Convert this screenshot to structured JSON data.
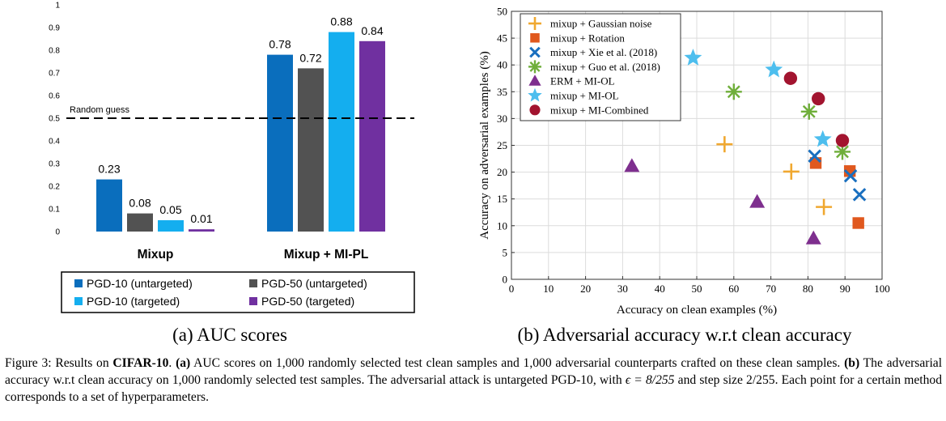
{
  "panel_a": {
    "subtitle": "(a) AUC scores",
    "random_guess_label": "Random guess",
    "legend_font_hint": "sans"
  },
  "panel_b": {
    "subtitle": "(b) Adversarial accuracy w.r.t clean accuracy"
  },
  "caption": {
    "lead": "Figure 3: Results on ",
    "dataset": "CIFAR-10",
    "after_dataset": ". ",
    "a_tag": "(a)",
    "a_text": " AUC scores on 1,000 randomly selected test clean samples and 1,000 adversarial counterparts crafted on these clean samples. ",
    "b_tag": "(b)",
    "b_text": " The adversarial accuracy w.r.t clean accuracy on 1,000 randomly selected test samples. The adversarial attack is untargeted PGD-10, with ",
    "eps": "ϵ = 8/255",
    "b_text2": " and step size ",
    "step": "2/255",
    "b_text3": ". Each point for a certain method corresponds to a set of hyperparameters."
  },
  "chart_data": [
    {
      "type": "bar",
      "title": "",
      "xlabel": "",
      "ylabel": "",
      "categories": [
        "Mixup",
        "Mixup + MI-PL"
      ],
      "ylim": [
        0,
        1
      ],
      "yticks": [
        0,
        0.1,
        0.2,
        0.3,
        0.4,
        0.5,
        0.6,
        0.7,
        0.8,
        0.9,
        1
      ],
      "ytick_labels": [
        "0",
        "0.1",
        "0.2",
        "0.3",
        "0.4",
        "0.5",
        "0.6",
        "0.7",
        "0.8",
        "0.9",
        "1"
      ],
      "reference_line": {
        "y": 0.5,
        "label": "Random guess",
        "style": "dashed"
      },
      "grid": false,
      "legend_position": "bottom",
      "series": [
        {
          "name": "PGD-10 (untargeted)",
          "color": "#0a6ebd",
          "values": [
            0.23,
            0.78
          ],
          "labels": [
            "0.23",
            "0.78"
          ]
        },
        {
          "name": "PGD-50 (untargeted)",
          "color": "#525252",
          "values": [
            0.08,
            0.72
          ],
          "labels": [
            "0.08",
            "0.72"
          ]
        },
        {
          "name": "PGD-10 (targeted)",
          "color": "#14aeef",
          "values": [
            0.05,
            0.88
          ],
          "labels": [
            "0.05",
            "0.88"
          ]
        },
        {
          "name": "PGD-50 (targeted)",
          "color": "#7030a0",
          "values": [
            0.01,
            0.84
          ],
          "labels": [
            "0.01",
            "0.84"
          ]
        }
      ]
    },
    {
      "type": "scatter",
      "title": "",
      "xlabel": "Accuracy on clean examples (%)",
      "ylabel": "Accuracy on adversarial examples (%)",
      "xlim": [
        0,
        100
      ],
      "ylim": [
        0,
        50
      ],
      "xticks": [
        0,
        10,
        20,
        30,
        40,
        50,
        60,
        70,
        80,
        90,
        100
      ],
      "xtick_labels": [
        "0",
        "10",
        "20",
        "30",
        "40",
        "50",
        "60",
        "70",
        "80",
        "90",
        "100"
      ],
      "yticks": [
        0,
        5,
        10,
        15,
        20,
        25,
        30,
        35,
        40,
        45,
        50
      ],
      "ytick_labels": [
        "0",
        "5",
        "10",
        "15",
        "20",
        "25",
        "30",
        "35",
        "40",
        "45",
        "50"
      ],
      "grid": true,
      "legend_position": "top-left",
      "series": [
        {
          "name": "mixup + Gaussian noise",
          "marker": "plus",
          "color": "#f0a830",
          "points": [
            [
              57.5,
              25.2
            ],
            [
              75.5,
              20.1
            ],
            [
              84.3,
              13.5
            ]
          ]
        },
        {
          "name": "mixup + Rotation",
          "marker": "square",
          "color": "#e0581e",
          "points": [
            [
              82.1,
              21.7
            ],
            [
              91.3,
              20.2
            ],
            [
              93.6,
              10.5
            ]
          ]
        },
        {
          "name": "mixup + Xie et al. (2018)",
          "marker": "x",
          "color": "#1a6fbf",
          "points": [
            [
              81.8,
              23.0
            ],
            [
              91.5,
              19.3
            ],
            [
              93.9,
              15.8
            ]
          ]
        },
        {
          "name": "mixup + Guo et al. (2018)",
          "marker": "asterisk",
          "color": "#6fae3a",
          "points": [
            [
              60.0,
              35.0
            ],
            [
              80.3,
              31.3
            ],
            [
              89.3,
              23.8
            ]
          ]
        },
        {
          "name": "ERM + MI-OL",
          "marker": "triangle",
          "color": "#7e2f8e",
          "points": [
            [
              32.5,
              21.1
            ],
            [
              66.3,
              14.4
            ],
            [
              81.5,
              7.6
            ]
          ]
        },
        {
          "name": "mixup + MI-OL",
          "marker": "star",
          "color": "#4dbeee",
          "points": [
            [
              49.0,
              41.3
            ],
            [
              70.8,
              39.1
            ],
            [
              84.0,
              26.1
            ]
          ]
        },
        {
          "name": "mixup + MI-Combined",
          "marker": "circle",
          "color": "#a2142f",
          "points": [
            [
              75.3,
              37.5
            ],
            [
              82.8,
              33.7
            ],
            [
              89.3,
              25.9
            ]
          ]
        }
      ]
    }
  ]
}
